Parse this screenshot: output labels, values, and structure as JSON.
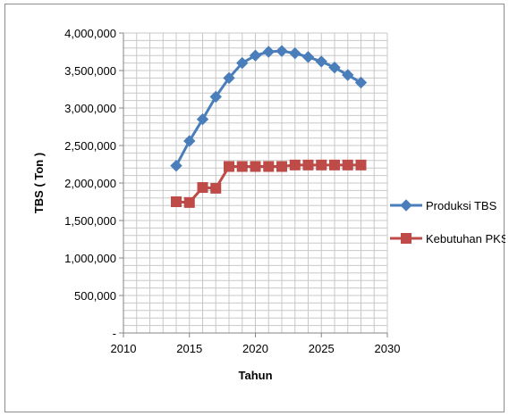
{
  "chart_data": {
    "type": "line",
    "title": "",
    "xlabel": "Tahun",
    "ylabel": "TBS ( Ton )",
    "xlim": [
      2010,
      2030
    ],
    "ylim": [
      0,
      4000000
    ],
    "x_ticks": [
      "2010",
      "2015",
      "2020",
      "2025",
      "2030"
    ],
    "y_ticks": [
      "-",
      "500,000",
      "1,000,000",
      "1,500,000",
      "2,000,000",
      "2,500,000",
      "3,000,000",
      "3,500,000",
      "4,000,000"
    ],
    "grid": true,
    "legend_position": "right",
    "series": [
      {
        "name": "Produksi TBS",
        "color": "#4a7ebb",
        "marker": "diamond",
        "x": [
          2014,
          2015,
          2016,
          2017,
          2018,
          2019,
          2020,
          2021,
          2022,
          2023,
          2024,
          2025,
          2026,
          2027,
          2028
        ],
        "values": [
          2230000,
          2560000,
          2850000,
          3150000,
          3400000,
          3600000,
          3700000,
          3750000,
          3760000,
          3730000,
          3680000,
          3620000,
          3540000,
          3440000,
          3340000
        ]
      },
      {
        "name": "Kebutuhan PKS",
        "color": "#be4b48",
        "marker": "square",
        "x": [
          2014,
          2015,
          2016,
          2017,
          2018,
          2019,
          2020,
          2021,
          2022,
          2023,
          2024,
          2025,
          2026,
          2027,
          2028
        ],
        "values": [
          1750000,
          1740000,
          1940000,
          1930000,
          2220000,
          2220000,
          2220000,
          2220000,
          2220000,
          2240000,
          2240000,
          2240000,
          2240000,
          2240000,
          2240000
        ]
      }
    ]
  }
}
